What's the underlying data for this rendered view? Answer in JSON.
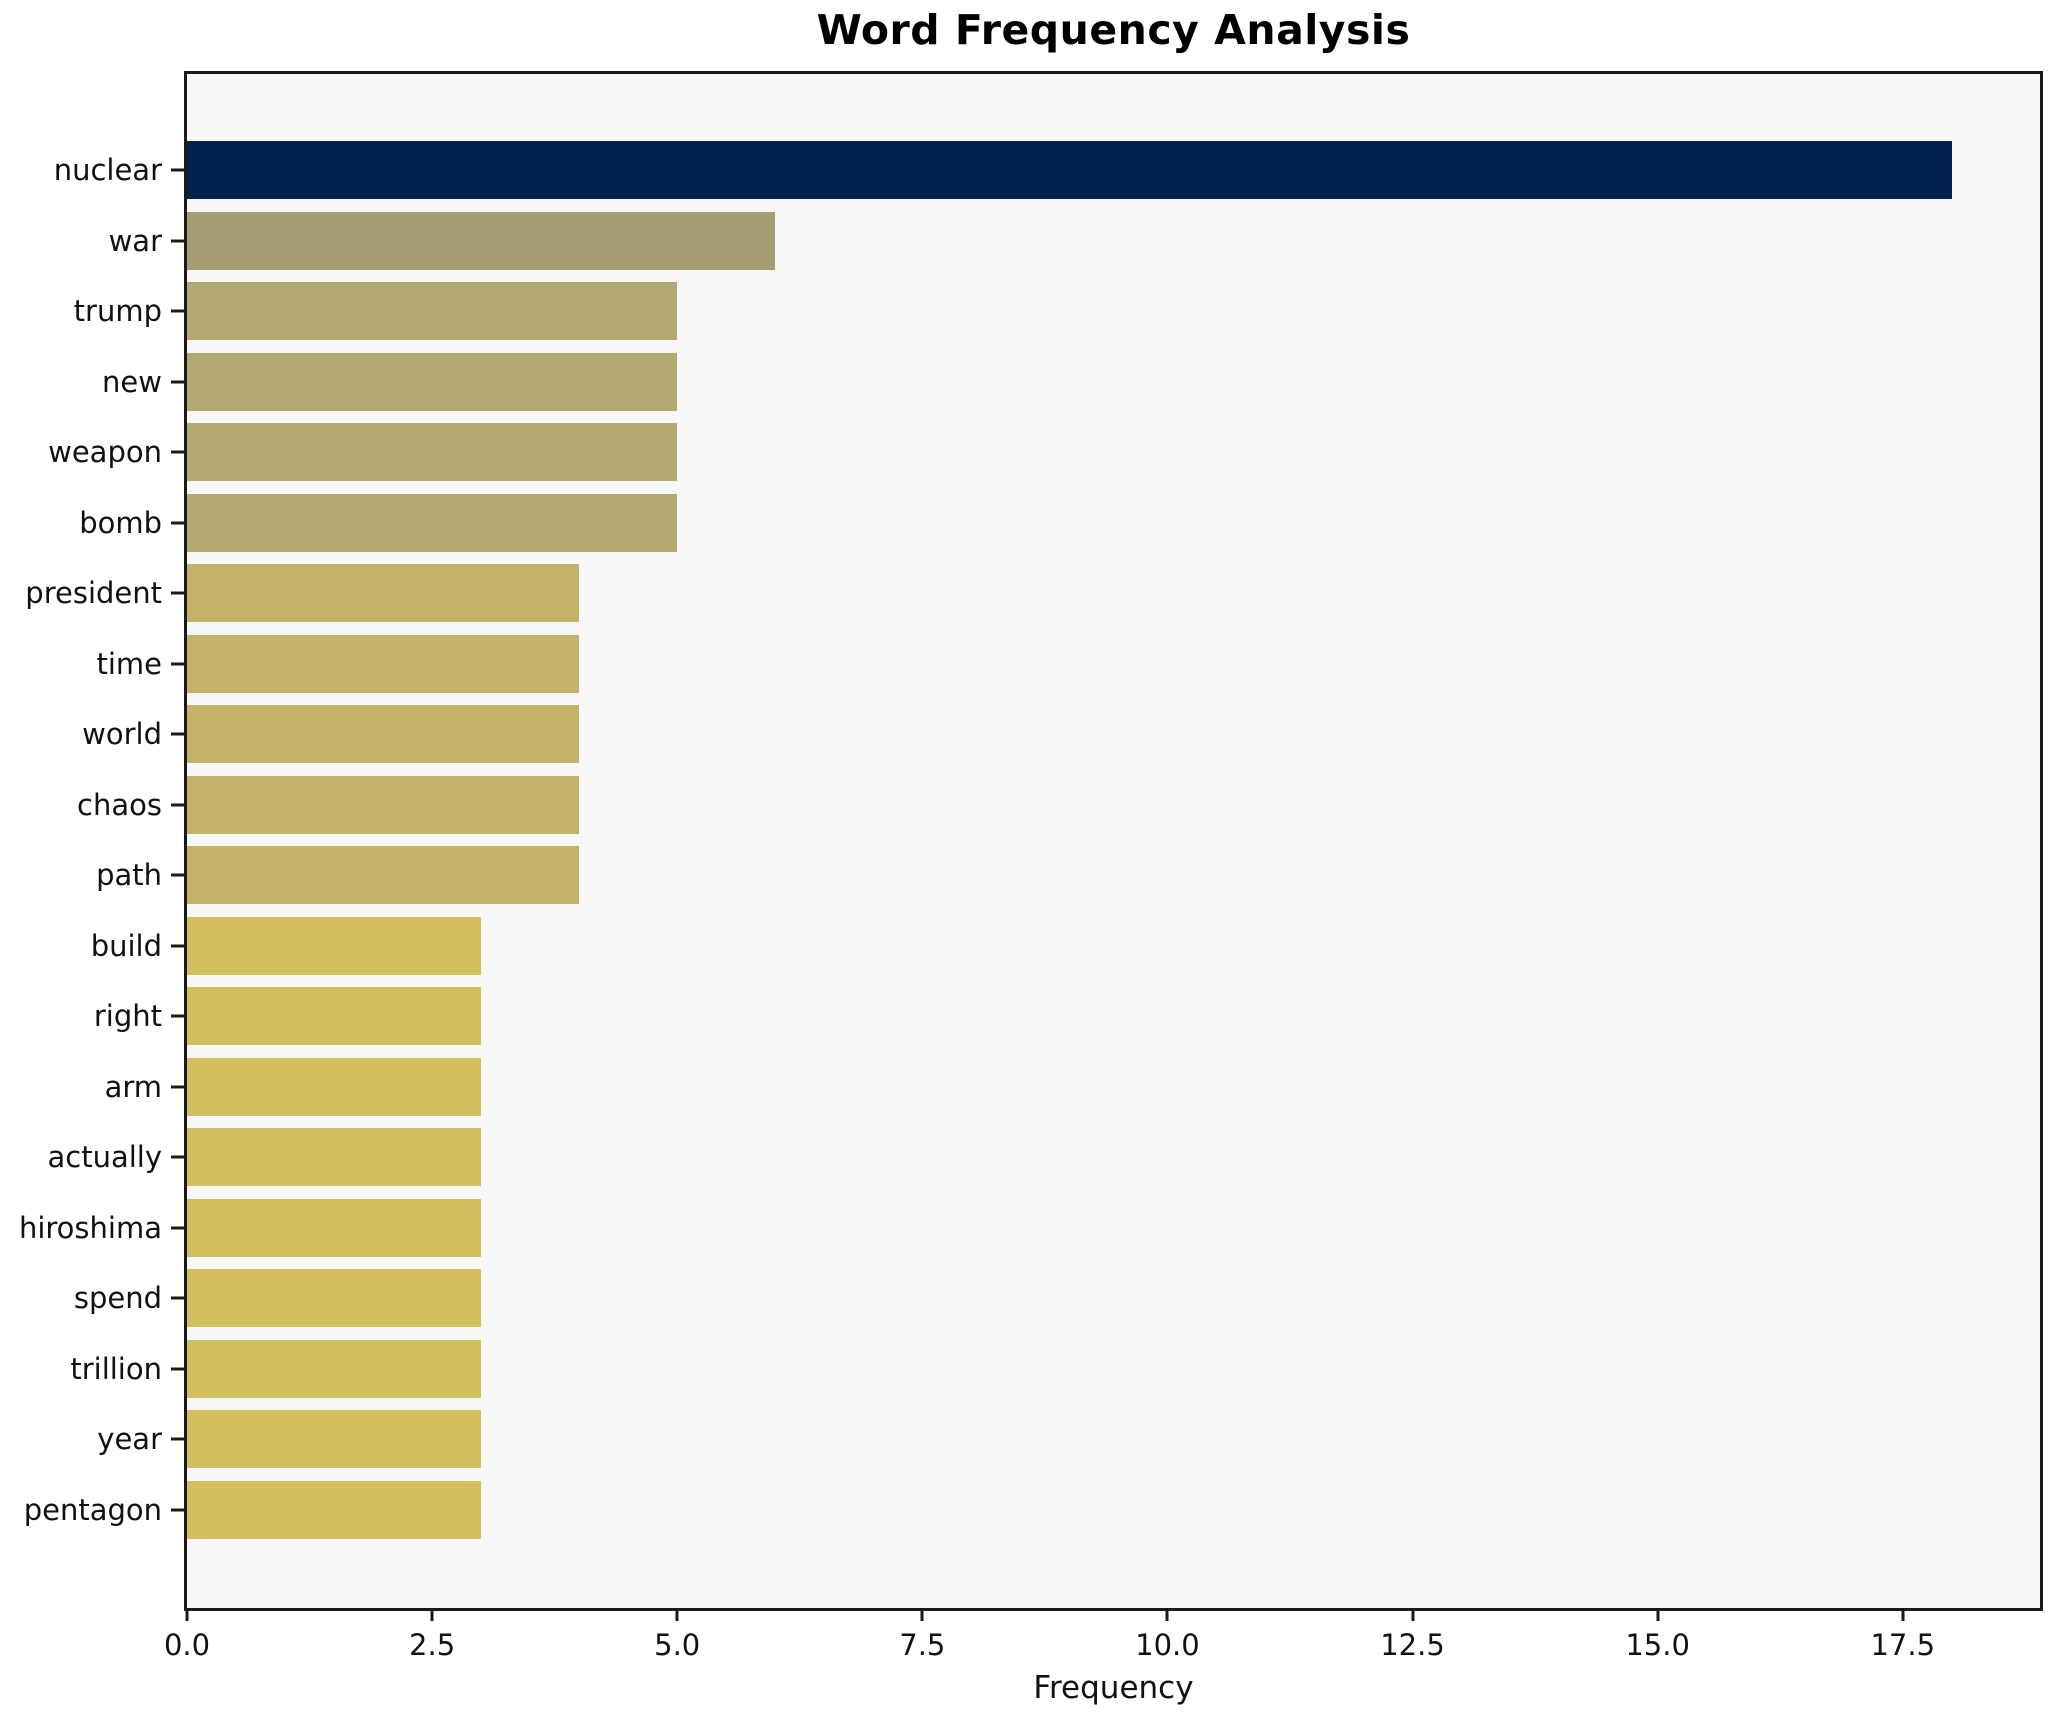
{
  "title": "Word Frequency Analysis",
  "chart_data": {
    "type": "bar",
    "orientation": "horizontal",
    "title": "Word Frequency Analysis",
    "xlabel": "Frequency",
    "ylabel": "",
    "categories": [
      "nuclear",
      "war",
      "trump",
      "new",
      "weapon",
      "bomb",
      "president",
      "time",
      "world",
      "chaos",
      "path",
      "build",
      "right",
      "arm",
      "actually",
      "hiroshima",
      "spend",
      "trillion",
      "year",
      "pentagon"
    ],
    "values": [
      18,
      6,
      5,
      5,
      5,
      5,
      4,
      4,
      4,
      4,
      4,
      3,
      3,
      3,
      3,
      3,
      3,
      3,
      3,
      3
    ],
    "bar_colors": [
      "#02224d",
      "#a49c73",
      "#b2a96e",
      "#b2a96e",
      "#b2a96e",
      "#b2a96e",
      "#c3b369",
      "#c3b369",
      "#c3b369",
      "#c3b369",
      "#c3b369",
      "#d2c05f",
      "#d2c05f",
      "#d2c05f",
      "#d2c05f",
      "#d2c05f",
      "#d2c05f",
      "#d2c05f",
      "#d2c05f",
      "#d2c05f"
    ],
    "xlim": [
      0,
      18.9
    ],
    "x_ticks": [
      0,
      2.5,
      5,
      7.5,
      10,
      12.5,
      15,
      17.5
    ],
    "x_tick_labels": [
      "0.0",
      "2.5",
      "5.0",
      "7.5",
      "10.0",
      "12.5",
      "15.0",
      "17.5"
    ],
    "grid": false,
    "legend": "none",
    "plot_background": "#f7f7f8",
    "spine_color": "#1a1a1a",
    "sorted": "descending"
  }
}
